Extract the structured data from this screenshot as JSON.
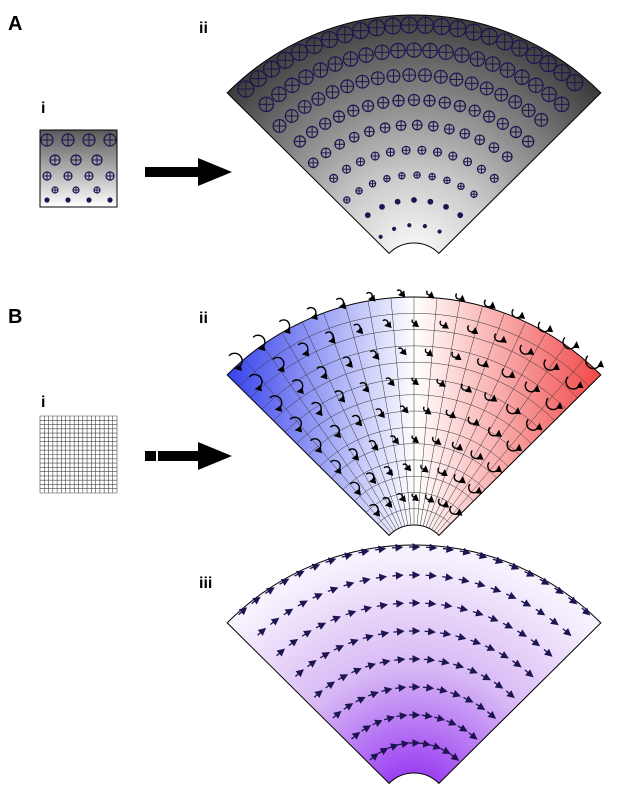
{
  "panels": {
    "A": {
      "label": "A",
      "i_label": "i",
      "ii_label": "ii",
      "description_colors": {
        "fill_outer": "#3a3a3a",
        "fill_inner": "#ffffff",
        "marker": "#1c1550"
      }
    },
    "B": {
      "label": "B",
      "i_label": "i",
      "ii_label": "ii",
      "iii_label": "iii",
      "description_colors": {
        "left": "#1e2be8",
        "mid": "#ffffff",
        "right": "#f03030",
        "iii_outer": "#ffffff",
        "iii_inner": "#8a1cf0",
        "arrow": "#1c1550"
      }
    }
  },
  "icons": [
    "arrow-right-icon",
    "arrow-right-icon"
  ]
}
